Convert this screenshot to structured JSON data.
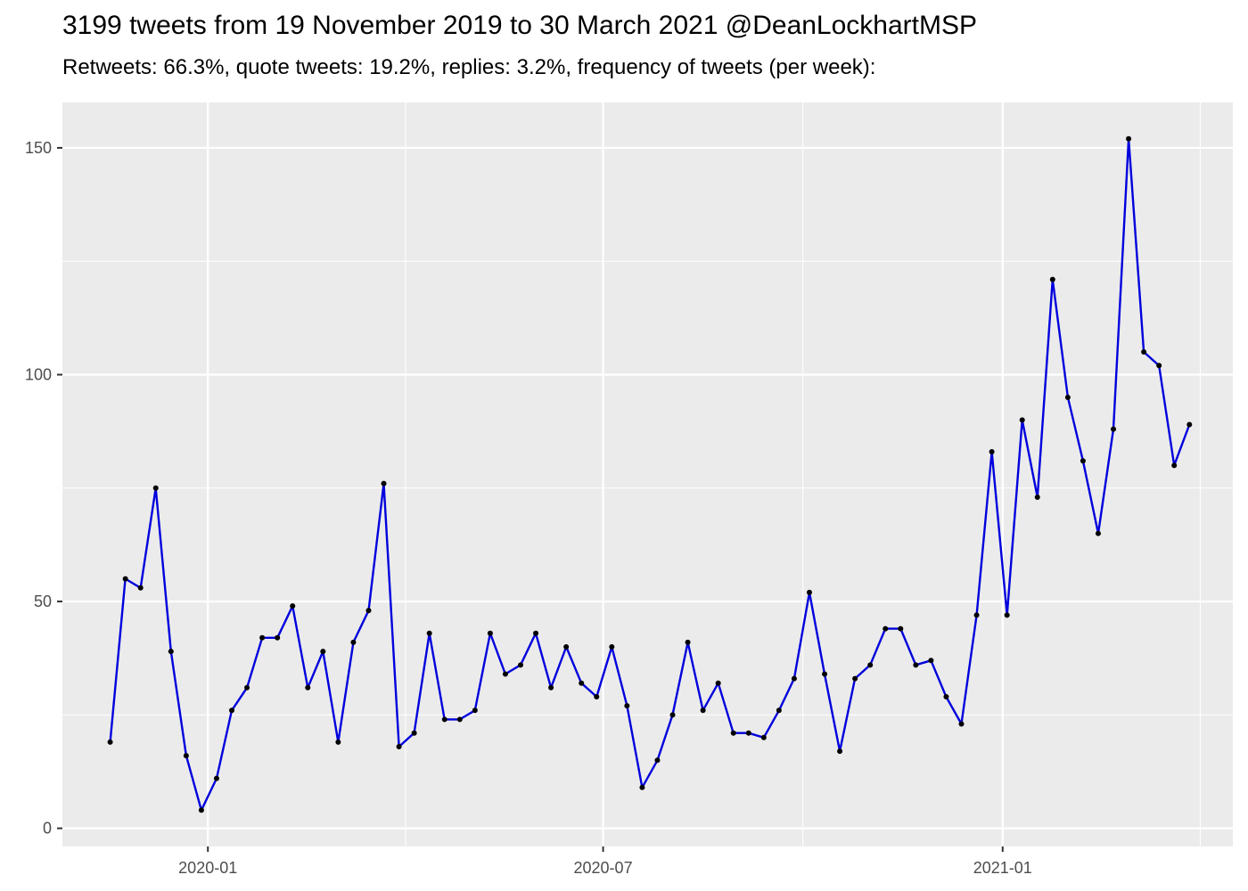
{
  "chart_data": {
    "type": "line",
    "title": "3199 tweets from 19 November 2019 to 30 March 2021 @DeanLockhartMSP",
    "subtitle": "Retweets: 66.3%, quote tweets: 19.2%, replies: 3.2%, frequency of tweets (per week):",
    "xlabel": "",
    "ylabel": "",
    "ylim": [
      0,
      155
    ],
    "yticks": [
      0,
      50,
      100,
      150
    ],
    "xticks": [
      "2020-01",
      "2020-07",
      "2021-01"
    ],
    "grid": true,
    "legend": "none",
    "colors": {
      "line": "#0000dd",
      "point": "#000000",
      "panel": "#ebebeb",
      "grid": "#ffffff"
    },
    "x": [
      "2019-11-17",
      "2019-11-24",
      "2019-12-01",
      "2019-12-08",
      "2019-12-15",
      "2019-12-22",
      "2019-12-29",
      "2020-01-05",
      "2020-01-12",
      "2020-01-19",
      "2020-01-26",
      "2020-02-02",
      "2020-02-09",
      "2020-02-16",
      "2020-02-23",
      "2020-03-01",
      "2020-03-08",
      "2020-03-15",
      "2020-03-22",
      "2020-03-29",
      "2020-04-05",
      "2020-04-12",
      "2020-04-19",
      "2020-04-26",
      "2020-05-03",
      "2020-05-10",
      "2020-05-17",
      "2020-05-24",
      "2020-05-31",
      "2020-06-07",
      "2020-06-14",
      "2020-06-21",
      "2020-06-28",
      "2020-07-05",
      "2020-07-12",
      "2020-07-19",
      "2020-07-26",
      "2020-08-02",
      "2020-08-09",
      "2020-08-16",
      "2020-08-23",
      "2020-08-30",
      "2020-09-06",
      "2020-09-13",
      "2020-09-20",
      "2020-09-27",
      "2020-10-04",
      "2020-10-11",
      "2020-10-18",
      "2020-10-25",
      "2020-11-01",
      "2020-11-08",
      "2020-11-15",
      "2020-11-22",
      "2020-11-29",
      "2020-12-06",
      "2020-12-13",
      "2020-12-20",
      "2020-12-27",
      "2021-01-03",
      "2021-01-10",
      "2021-01-17",
      "2021-01-24",
      "2021-01-31",
      "2021-02-07",
      "2021-02-14",
      "2021-02-21",
      "2021-02-28",
      "2021-03-07",
      "2021-03-14",
      "2021-03-21",
      "2021-03-28"
    ],
    "series": [
      {
        "values": [
          19,
          55,
          53,
          75,
          39,
          16,
          4,
          11,
          26,
          31,
          42,
          42,
          49,
          31,
          39,
          19,
          41,
          48,
          76,
          18,
          21,
          43,
          24,
          24,
          26,
          43,
          34,
          36,
          43,
          31,
          40,
          32,
          29,
          40,
          27,
          9,
          15,
          25,
          41,
          26,
          32,
          21,
          21,
          20,
          26,
          33,
          52,
          34,
          17,
          33,
          36,
          44,
          44,
          36,
          37,
          29,
          23,
          47,
          83,
          47,
          90,
          73,
          121,
          95,
          81,
          65,
          88,
          152,
          105,
          102,
          80,
          89
        ]
      }
    ]
  }
}
